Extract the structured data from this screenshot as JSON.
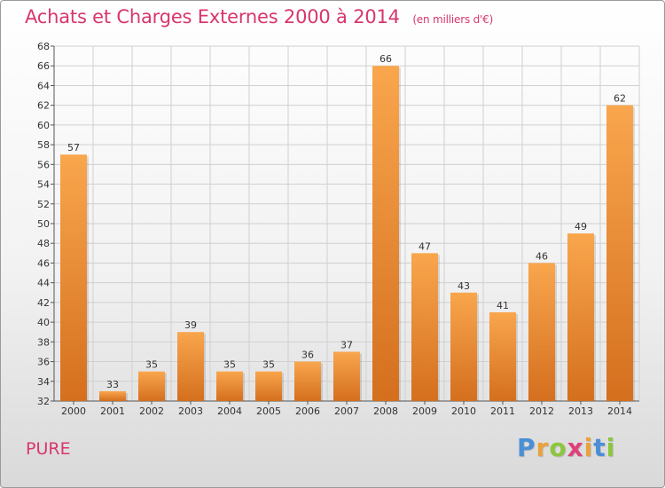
{
  "header": {
    "title": "Achats et Charges Externes 2000 à 2014",
    "subtitle": "(en milliers d'€)"
  },
  "footer": {
    "city": "PURE",
    "logo": [
      "P",
      "r",
      "o",
      "x",
      "i",
      "t",
      "i"
    ],
    "logo_colors": [
      "#4a8fd6",
      "#e9a23b",
      "#8cc63f",
      "#e0407a",
      "#e9a23b",
      "#4a8fd6",
      "#8cc63f"
    ]
  },
  "colors": {
    "bar_light": "#f9a64d",
    "bar_dark": "#d46f1e",
    "grid": "#d0d0d0",
    "title": "#d8366c"
  },
  "chart_data": {
    "type": "bar",
    "title": "Achats et Charges Externes 2000 à 2014",
    "subtitle": "(en milliers d'€)",
    "categories": [
      "2000",
      "2001",
      "2002",
      "2003",
      "2004",
      "2005",
      "2006",
      "2007",
      "2008",
      "2009",
      "2010",
      "2011",
      "2012",
      "2013",
      "2014"
    ],
    "values": [
      57,
      33,
      35,
      39,
      35,
      35,
      36,
      37,
      66,
      47,
      43,
      41,
      46,
      49,
      62
    ],
    "ylim": [
      32,
      68
    ],
    "yticks": [
      "32",
      "34",
      "36",
      "38",
      "40",
      "42",
      "44",
      "46",
      "48",
      "50",
      "52",
      "54",
      "56",
      "58",
      "60",
      "62",
      "64",
      "66",
      "68"
    ],
    "grid": true,
    "xlabel": "",
    "ylabel": ""
  }
}
